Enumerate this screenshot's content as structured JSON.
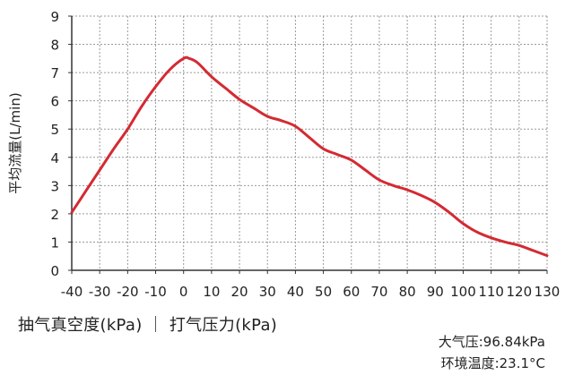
{
  "chart_data": {
    "type": "line",
    "xlabel": "抽气真空度(kPa) ｜ 打气压力(kPa)",
    "ylabel": "平均流量(L/min)",
    "xlim": [
      -40,
      130
    ],
    "ylim": [
      0,
      9
    ],
    "xticks": [
      "-40",
      "-30",
      "-20",
      "-10",
      "0",
      "10",
      "20",
      "30",
      "40",
      "50",
      "60",
      "70",
      "80",
      "90",
      "100",
      "110",
      "120",
      "130"
    ],
    "yticks": [
      "0",
      "1",
      "2",
      "3",
      "4",
      "5",
      "6",
      "7",
      "8",
      "9"
    ],
    "grid": true,
    "color": "#d42a32",
    "series": [
      {
        "x": [
          -40,
          -35,
          -30,
          -25,
          -20,
          -15,
          -10,
          -5,
          0,
          2,
          5,
          10,
          15,
          20,
          25,
          30,
          35,
          40,
          45,
          50,
          55,
          60,
          65,
          70,
          75,
          80,
          85,
          90,
          95,
          100,
          105,
          110,
          115,
          120,
          125,
          130
        ],
        "y": [
          2.05,
          2.8,
          3.55,
          4.3,
          5.0,
          5.8,
          6.5,
          7.1,
          7.5,
          7.5,
          7.35,
          6.85,
          6.45,
          6.05,
          5.75,
          5.45,
          5.3,
          5.1,
          4.7,
          4.3,
          4.1,
          3.9,
          3.55,
          3.2,
          3.0,
          2.85,
          2.65,
          2.4,
          2.05,
          1.65,
          1.35,
          1.15,
          1.0,
          0.88,
          0.7,
          0.52
        ]
      }
    ]
  },
  "notes": {
    "pressure": "大气压:96.84kPa",
    "temperature": "环境温度:23.1°C"
  }
}
